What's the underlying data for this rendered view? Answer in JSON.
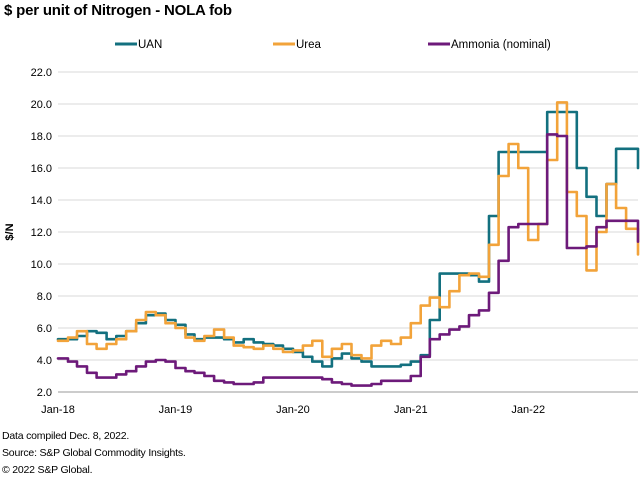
{
  "title": "$ per unit of Nitrogen - NOLA fob",
  "footnotes": [
    "Data compiled Dec. 8, 2022.",
    "Source: S&P Global Commodity Insights.",
    "© 2022 S&P Global."
  ],
  "colors": {
    "UAN": "#13707f",
    "Urea": "#f2a33a",
    "Ammonia (nominal)": "#6d1a7a"
  },
  "chart_data": {
    "type": "line",
    "ylabel": "$/N",
    "xlabel": "",
    "ylim": [
      2.0,
      22.0
    ],
    "yticks": [
      "2.0",
      "4.0",
      "6.0",
      "8.0",
      "10.0",
      "12.0",
      "14.0",
      "16.0",
      "18.0",
      "20.0",
      "22.0"
    ],
    "xticks": [
      "Jan-18",
      "Jan-19",
      "Jan-20",
      "Jan-21",
      "Jan-22"
    ],
    "xlim": [
      "2018-01-01",
      "2022-12-08"
    ],
    "grid": "horizontal",
    "legend": "top",
    "series": [
      {
        "name": "UAN",
        "points": [
          [
            "2018-01-01",
            5.3
          ],
          [
            "2018-02-01",
            5.3
          ],
          [
            "2018-03-01",
            5.5
          ],
          [
            "2018-04-01",
            5.8
          ],
          [
            "2018-05-01",
            5.7
          ],
          [
            "2018-06-01",
            5.3
          ],
          [
            "2018-07-01",
            5.5
          ],
          [
            "2018-08-01",
            5.8
          ],
          [
            "2018-09-01",
            6.3
          ],
          [
            "2018-10-01",
            6.8
          ],
          [
            "2018-11-01",
            6.9
          ],
          [
            "2018-12-01",
            6.5
          ],
          [
            "2019-01-01",
            6.2
          ],
          [
            "2019-02-01",
            5.6
          ],
          [
            "2019-03-01",
            5.3
          ],
          [
            "2019-04-01",
            5.4
          ],
          [
            "2019-05-01",
            5.4
          ],
          [
            "2019-06-01",
            5.3
          ],
          [
            "2019-07-01",
            5.1
          ],
          [
            "2019-08-01",
            5.3
          ],
          [
            "2019-09-01",
            5.1
          ],
          [
            "2019-10-01",
            5.0
          ],
          [
            "2019-11-01",
            4.9
          ],
          [
            "2019-12-01",
            4.7
          ],
          [
            "2020-01-01",
            4.5
          ],
          [
            "2020-02-01",
            4.2
          ],
          [
            "2020-03-01",
            3.9
          ],
          [
            "2020-04-01",
            3.6
          ],
          [
            "2020-05-01",
            4.1
          ],
          [
            "2020-06-01",
            4.4
          ],
          [
            "2020-07-01",
            4.1
          ],
          [
            "2020-08-01",
            3.9
          ],
          [
            "2020-09-01",
            3.6
          ],
          [
            "2020-10-01",
            3.6
          ],
          [
            "2020-11-01",
            3.6
          ],
          [
            "2020-12-01",
            3.7
          ],
          [
            "2021-01-01",
            3.9
          ],
          [
            "2021-02-01",
            4.3
          ],
          [
            "2021-03-01",
            6.5
          ],
          [
            "2021-04-01",
            9.4
          ],
          [
            "2021-05-01",
            9.4
          ],
          [
            "2021-06-01",
            9.4
          ],
          [
            "2021-07-01",
            9.3
          ],
          [
            "2021-08-01",
            8.9
          ],
          [
            "2021-09-01",
            13.0
          ],
          [
            "2021-10-01",
            17.0
          ],
          [
            "2021-11-01",
            17.0
          ],
          [
            "2021-12-01",
            17.0
          ],
          [
            "2022-01-01",
            17.0
          ],
          [
            "2022-02-01",
            17.0
          ],
          [
            "2022-03-01",
            19.5
          ],
          [
            "2022-04-01",
            19.5
          ],
          [
            "2022-05-01",
            19.5
          ],
          [
            "2022-06-01",
            16.0
          ],
          [
            "2022-07-01",
            14.2
          ],
          [
            "2022-08-01",
            13.0
          ],
          [
            "2022-09-01",
            15.0
          ],
          [
            "2022-10-01",
            17.2
          ],
          [
            "2022-11-01",
            17.2
          ],
          [
            "2022-12-08",
            16.0
          ]
        ]
      },
      {
        "name": "Urea",
        "points": [
          [
            "2018-01-01",
            5.2
          ],
          [
            "2018-02-01",
            5.4
          ],
          [
            "2018-03-01",
            5.8
          ],
          [
            "2018-04-01",
            5.0
          ],
          [
            "2018-05-01",
            4.7
          ],
          [
            "2018-06-01",
            5.0
          ],
          [
            "2018-07-01",
            5.3
          ],
          [
            "2018-08-01",
            5.8
          ],
          [
            "2018-09-01",
            6.5
          ],
          [
            "2018-10-01",
            7.0
          ],
          [
            "2018-11-01",
            6.8
          ],
          [
            "2018-12-01",
            6.3
          ],
          [
            "2019-01-01",
            6.0
          ],
          [
            "2019-02-01",
            5.4
          ],
          [
            "2019-03-01",
            5.2
          ],
          [
            "2019-04-01",
            5.5
          ],
          [
            "2019-05-01",
            5.9
          ],
          [
            "2019-06-01",
            5.4
          ],
          [
            "2019-07-01",
            4.9
          ],
          [
            "2019-08-01",
            4.8
          ],
          [
            "2019-09-01",
            4.7
          ],
          [
            "2019-10-01",
            4.9
          ],
          [
            "2019-11-01",
            4.7
          ],
          [
            "2019-12-01",
            4.5
          ],
          [
            "2020-01-01",
            4.6
          ],
          [
            "2020-02-01",
            4.9
          ],
          [
            "2020-03-01",
            5.2
          ],
          [
            "2020-04-01",
            4.2
          ],
          [
            "2020-05-01",
            4.7
          ],
          [
            "2020-06-01",
            5.0
          ],
          [
            "2020-07-01",
            4.3
          ],
          [
            "2020-08-01",
            4.1
          ],
          [
            "2020-09-01",
            4.9
          ],
          [
            "2020-10-01",
            5.2
          ],
          [
            "2020-11-01",
            5.0
          ],
          [
            "2020-12-01",
            5.4
          ],
          [
            "2021-01-01",
            6.3
          ],
          [
            "2021-02-01",
            7.4
          ],
          [
            "2021-03-01",
            7.9
          ],
          [
            "2021-04-01",
            7.3
          ],
          [
            "2021-05-01",
            8.3
          ],
          [
            "2021-06-01",
            9.3
          ],
          [
            "2021-07-01",
            9.4
          ],
          [
            "2021-08-01",
            9.2
          ],
          [
            "2021-09-01",
            11.2
          ],
          [
            "2021-10-01",
            15.5
          ],
          [
            "2021-11-01",
            17.5
          ],
          [
            "2021-12-01",
            16.0
          ],
          [
            "2022-01-01",
            11.5
          ],
          [
            "2022-02-01",
            12.5
          ],
          [
            "2022-03-01",
            16.5
          ],
          [
            "2022-04-01",
            20.1
          ],
          [
            "2022-05-01",
            14.5
          ],
          [
            "2022-06-01",
            13.0
          ],
          [
            "2022-07-01",
            9.6
          ],
          [
            "2022-08-01",
            12.0
          ],
          [
            "2022-09-01",
            15.0
          ],
          [
            "2022-10-01",
            13.5
          ],
          [
            "2022-11-01",
            12.2
          ],
          [
            "2022-12-08",
            10.6
          ]
        ]
      },
      {
        "name": "Ammonia (nominal)",
        "points": [
          [
            "2018-01-01",
            4.1
          ],
          [
            "2018-02-01",
            3.9
          ],
          [
            "2018-03-01",
            3.6
          ],
          [
            "2018-04-01",
            3.2
          ],
          [
            "2018-05-01",
            2.9
          ],
          [
            "2018-06-01",
            2.9
          ],
          [
            "2018-07-01",
            3.1
          ],
          [
            "2018-08-01",
            3.3
          ],
          [
            "2018-09-01",
            3.6
          ],
          [
            "2018-10-01",
            3.9
          ],
          [
            "2018-11-01",
            4.0
          ],
          [
            "2018-12-01",
            3.9
          ],
          [
            "2019-01-01",
            3.5
          ],
          [
            "2019-02-01",
            3.3
          ],
          [
            "2019-03-01",
            3.2
          ],
          [
            "2019-04-01",
            3.0
          ],
          [
            "2019-05-01",
            2.7
          ],
          [
            "2019-06-01",
            2.6
          ],
          [
            "2019-07-01",
            2.5
          ],
          [
            "2019-08-01",
            2.5
          ],
          [
            "2019-09-01",
            2.6
          ],
          [
            "2019-10-01",
            2.9
          ],
          [
            "2019-11-01",
            2.9
          ],
          [
            "2019-12-01",
            2.9
          ],
          [
            "2020-01-01",
            2.9
          ],
          [
            "2020-02-01",
            2.9
          ],
          [
            "2020-03-01",
            2.9
          ],
          [
            "2020-04-01",
            2.8
          ],
          [
            "2020-05-01",
            2.6
          ],
          [
            "2020-06-01",
            2.5
          ],
          [
            "2020-07-01",
            2.4
          ],
          [
            "2020-08-01",
            2.4
          ],
          [
            "2020-09-01",
            2.5
          ],
          [
            "2020-10-01",
            2.7
          ],
          [
            "2020-11-01",
            2.7
          ],
          [
            "2020-12-01",
            2.7
          ],
          [
            "2021-01-01",
            3.0
          ],
          [
            "2021-02-01",
            4.2
          ],
          [
            "2021-03-01",
            5.3
          ],
          [
            "2021-04-01",
            5.6
          ],
          [
            "2021-05-01",
            5.9
          ],
          [
            "2021-06-01",
            6.1
          ],
          [
            "2021-07-01",
            6.8
          ],
          [
            "2021-08-01",
            7.1
          ],
          [
            "2021-09-01",
            8.2
          ],
          [
            "2021-10-01",
            10.2
          ],
          [
            "2021-11-01",
            12.3
          ],
          [
            "2021-12-01",
            12.5
          ],
          [
            "2022-01-01",
            12.5
          ],
          [
            "2022-02-01",
            12.5
          ],
          [
            "2022-03-01",
            18.1
          ],
          [
            "2022-04-01",
            18.0
          ],
          [
            "2022-05-01",
            11.0
          ],
          [
            "2022-06-01",
            11.0
          ],
          [
            "2022-07-01",
            11.1
          ],
          [
            "2022-08-01",
            12.3
          ],
          [
            "2022-09-01",
            12.7
          ],
          [
            "2022-10-01",
            12.7
          ],
          [
            "2022-11-01",
            12.7
          ],
          [
            "2022-12-08",
            11.4
          ]
        ]
      }
    ]
  }
}
